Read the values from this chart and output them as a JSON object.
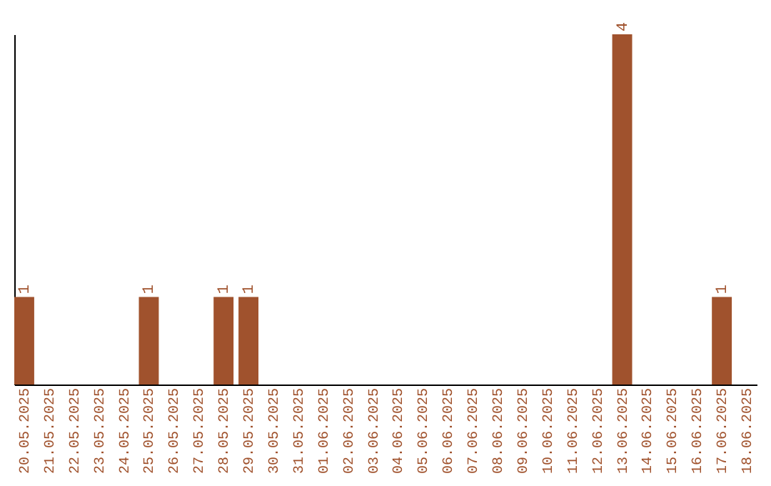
{
  "chart_data": {
    "type": "bar",
    "categories": [
      "20.05.2025",
      "21.05.2025",
      "22.05.2025",
      "23.05.2025",
      "24.05.2025",
      "25.05.2025",
      "26.05.2025",
      "27.05.2025",
      "28.05.2025",
      "29.05.2025",
      "30.05.2025",
      "31.05.2025",
      "01.06.2025",
      "02.06.2025",
      "03.06.2025",
      "04.06.2025",
      "05.06.2025",
      "06.06.2025",
      "07.06.2025",
      "08.06.2025",
      "09.06.2025",
      "10.06.2025",
      "11.06.2025",
      "12.06.2025",
      "13.06.2025",
      "14.06.2025",
      "15.06.2025",
      "16.06.2025",
      "17.06.2025",
      "18.06.2025"
    ],
    "values": [
      1,
      0,
      0,
      0,
      0,
      1,
      0,
      0,
      1,
      1,
      0,
      0,
      0,
      0,
      0,
      0,
      0,
      0,
      0,
      0,
      0,
      0,
      0,
      0,
      4,
      0,
      0,
      0,
      1,
      0
    ],
    "value_labels": [
      "1",
      null,
      null,
      null,
      null,
      "1",
      null,
      null,
      "1",
      "1",
      null,
      null,
      null,
      null,
      null,
      null,
      null,
      null,
      null,
      null,
      null,
      null,
      null,
      null,
      "4",
      null,
      null,
      null,
      "1",
      null
    ],
    "color": "#a0522d",
    "tick_labels": "x"
  }
}
